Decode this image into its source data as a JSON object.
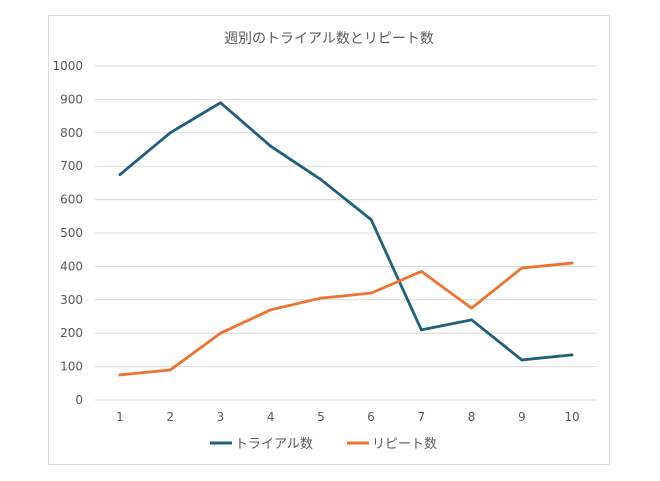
{
  "chart_data": {
    "type": "line",
    "title": "週別のトライアル数とリピート数",
    "x": [
      1,
      2,
      3,
      4,
      5,
      6,
      7,
      8,
      9,
      10
    ],
    "series": [
      {
        "name": "トライアル数",
        "color": "#1f5f7f",
        "values": [
          675,
          800,
          890,
          760,
          660,
          540,
          210,
          240,
          120,
          135
        ]
      },
      {
        "name": "リピート数",
        "color": "#ed7331",
        "values": [
          75,
          90,
          200,
          270,
          305,
          320,
          385,
          275,
          395,
          410
        ]
      }
    ],
    "ylim": [
      0,
      1000
    ],
    "yticks": [
      0,
      100,
      200,
      300,
      400,
      500,
      600,
      700,
      800,
      900,
      1000
    ],
    "grid": true,
    "legend": "bottom"
  }
}
